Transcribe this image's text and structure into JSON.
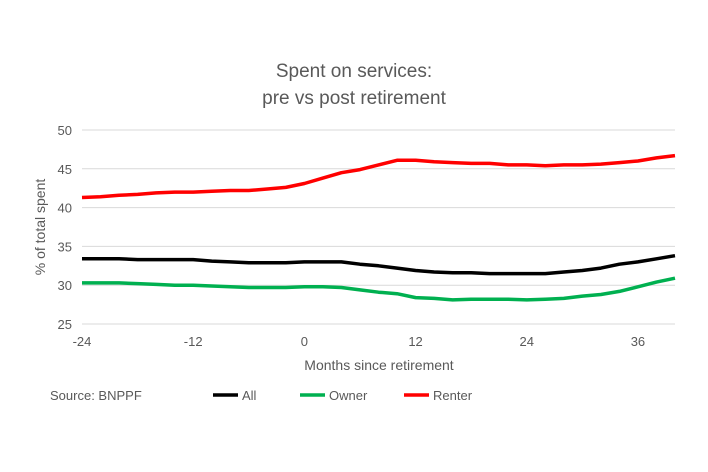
{
  "chart_data": {
    "type": "line",
    "title": [
      "Spent on services:",
      "pre vs post retirement"
    ],
    "xlabel": "Months since retirement",
    "ylabel": "% of total spent",
    "source": "Source: BNPPF",
    "xlim": [
      -24,
      40
    ],
    "ylim": [
      25,
      50
    ],
    "xticks": [
      -24,
      -12,
      0,
      12,
      24,
      36
    ],
    "yticks": [
      25,
      30,
      35,
      40,
      45,
      50
    ],
    "grid": true,
    "legend_position": "bottom",
    "x": [
      -24,
      -22,
      -20,
      -18,
      -16,
      -14,
      -12,
      -10,
      -8,
      -6,
      -4,
      -2,
      0,
      2,
      4,
      6,
      8,
      10,
      12,
      14,
      16,
      18,
      20,
      22,
      24,
      26,
      28,
      30,
      32,
      34,
      36,
      38,
      40
    ],
    "series": [
      {
        "name": "All",
        "color": "#000000",
        "values": [
          33.4,
          33.4,
          33.4,
          33.3,
          33.3,
          33.3,
          33.3,
          33.1,
          33.0,
          32.9,
          32.9,
          32.9,
          33.0,
          33.0,
          33.0,
          32.7,
          32.5,
          32.2,
          31.9,
          31.7,
          31.6,
          31.6,
          31.5,
          31.5,
          31.5,
          31.5,
          31.7,
          31.9,
          32.2,
          32.7,
          33.0,
          33.4,
          33.8
        ]
      },
      {
        "name": "Owner",
        "color": "#00B050",
        "values": [
          30.3,
          30.3,
          30.3,
          30.2,
          30.1,
          30.0,
          30.0,
          29.9,
          29.8,
          29.7,
          29.7,
          29.7,
          29.8,
          29.8,
          29.7,
          29.4,
          29.1,
          28.9,
          28.4,
          28.3,
          28.1,
          28.2,
          28.2,
          28.2,
          28.1,
          28.2,
          28.3,
          28.6,
          28.8,
          29.2,
          29.8,
          30.4,
          30.9
        ]
      },
      {
        "name": "Renter",
        "color": "#FF0000",
        "values": [
          41.3,
          41.4,
          41.6,
          41.7,
          41.9,
          42.0,
          42.0,
          42.1,
          42.2,
          42.2,
          42.4,
          42.6,
          43.1,
          43.8,
          44.5,
          44.9,
          45.5,
          46.1,
          46.1,
          45.9,
          45.8,
          45.7,
          45.7,
          45.5,
          45.5,
          45.4,
          45.5,
          45.5,
          45.6,
          45.8,
          46.0,
          46.4,
          46.7
        ]
      }
    ]
  }
}
